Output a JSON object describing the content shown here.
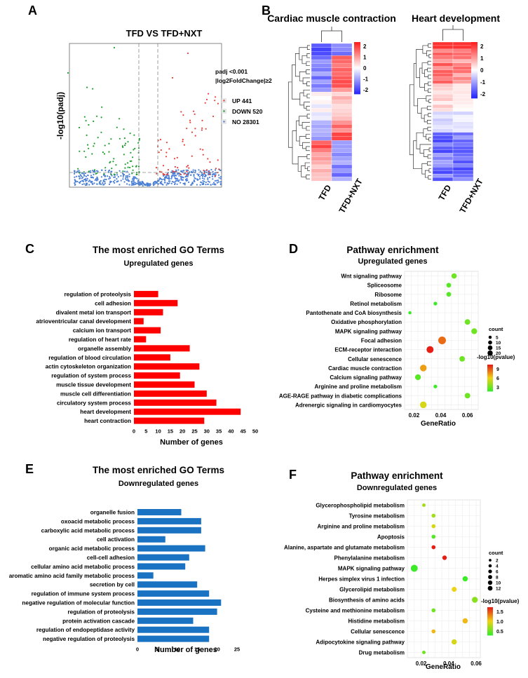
{
  "panels": {
    "A": {
      "letter": "A",
      "title": "TFD VS TFD+NXT",
      "ylabel": "-log10(padj)",
      "criteria": [
        "padj <0.001",
        "|log2FoldChange|≥2"
      ],
      "legend": [
        {
          "label": "UP 441",
          "color": "#e8413c"
        },
        {
          "label": "DOWN 520",
          "color": "#1f9e2f"
        },
        {
          "label": "NO 28301",
          "color": "#4a7fd6"
        }
      ]
    },
    "B": {
      "letter": "B",
      "heatmaps": [
        {
          "title": "Cardiac muscle contraction",
          "columns": [
            "TFD",
            "TFD+NXT"
          ]
        },
        {
          "title": "Heart development",
          "columns": [
            "TFD",
            "TFD+NXT"
          ]
        }
      ],
      "colorbar_ticks": [
        "2",
        "1",
        "0",
        "-1",
        "-2"
      ]
    },
    "C": {
      "letter": "C",
      "title": "The most enriched GO Terms",
      "subtitle": "Upregulated genes",
      "xlabel": "Number of genes"
    },
    "D": {
      "letter": "D",
      "title": "Pathway enrichment",
      "subtitle": "Upregulated genes",
      "xlabel": "GeneRatio",
      "legend_count_title": "count",
      "legend_count_values": [
        "5",
        "10",
        "15",
        "20"
      ],
      "legend_color_title": "-log10(pvalue)",
      "legend_color_ticks": [
        "9",
        "6",
        "3"
      ]
    },
    "E": {
      "letter": "E",
      "title": "The most enriched GO Terms",
      "subtitle": "Downregulated genes",
      "xlabel": "Number of genes"
    },
    "F": {
      "letter": "F",
      "title": "Pathway enrichment",
      "subtitle": "Downregulated genes",
      "xlabel": "GeneRatio",
      "legend_count_title": "count",
      "legend_count_values": [
        "2",
        "4",
        "6",
        "8",
        "10",
        "12"
      ],
      "legend_color_title": "-log10(pvalue)",
      "legend_color_ticks": [
        "1.5",
        "1.0",
        "0.5"
      ]
    }
  },
  "chart_data": [
    {
      "panel": "C",
      "type": "bar",
      "orientation": "horizontal",
      "color": "#ff0000",
      "categories": [
        "regulation of proteolysis",
        "cell adhesion",
        "divalent metal ion transport",
        "atrioventricular canal development",
        "calcium ion transport",
        "regulation of heart rate",
        "organelle assembly",
        "regulation of blood circulation",
        "actin cytoskeleton organization",
        "regulation of system process",
        "muscle tissue development",
        "muscle cell differentiation",
        "circulatory system process",
        "heart development",
        "heart contraction"
      ],
      "values": [
        10,
        18,
        12,
        4,
        11,
        5,
        23,
        15,
        27,
        19,
        25,
        30,
        34,
        44,
        29
      ],
      "xticks": [
        0,
        5,
        10,
        15,
        20,
        25,
        30,
        35,
        40,
        45,
        50
      ],
      "xlim": [
        0,
        50
      ]
    },
    {
      "panel": "D",
      "type": "scatter",
      "categories": [
        "Wnt signaling pathway",
        "Spliceosome",
        "Ribosome",
        "Retinol metabolism",
        "Pantothenate and CoA biosynthesis",
        "Oxidative phosphorylation",
        "MAPK signaling pathway",
        "Focal adhesion",
        "ECM-receptor interaction",
        "Cellular senescence",
        "Cardiac muscle contraction",
        "Calcium signaling pathway",
        "Arginine and proline metabolism",
        "AGE-RAGE pathway in diabetic complications",
        "Adrenergic signaling in cardiomyocytes"
      ],
      "gene_ratio": [
        0.05,
        0.046,
        0.046,
        0.036,
        0.017,
        0.06,
        0.065,
        0.041,
        0.032,
        0.056,
        0.027,
        0.023,
        0.036,
        0.06,
        0.027
      ],
      "count": [
        8,
        6,
        6,
        3,
        2,
        9,
        10,
        20,
        16,
        9,
        14,
        10,
        3,
        9,
        14
      ],
      "neg_log10_pvalue": [
        3,
        2.5,
        2.5,
        2,
        2,
        3,
        3,
        7.5,
        9,
        3,
        6.5,
        2.5,
        2,
        3,
        5
      ],
      "xticks": [
        0.02,
        0.04,
        0.06
      ],
      "xlim": [
        0.013,
        0.068
      ]
    },
    {
      "panel": "E",
      "type": "bar",
      "orientation": "horizontal",
      "color": "#1a72c2",
      "categories": [
        "organelle fusion",
        "oxoacid metabolic process",
        "carboxylic acid metabolic process",
        "cell activation",
        "organic acid metabolic process",
        "cell-cell adhesion",
        "cellular amino acid metabolic process",
        "aromatic amino acid family metabolic process",
        "secretion by cell",
        "regulation of immune system process",
        "negative regulation of molecular function",
        "regulation of proteolysis",
        "protein activation cascade",
        "regulation of endopeptidase activity",
        "negative regulation of proteolysis"
      ],
      "values": [
        11,
        16,
        16,
        7,
        17,
        13,
        12,
        4,
        15,
        18,
        21,
        20,
        14,
        18,
        18
      ],
      "xticks": [
        0,
        5,
        10,
        15,
        20,
        25
      ],
      "xlim": [
        0,
        25
      ]
    },
    {
      "panel": "F",
      "type": "scatter",
      "categories": [
        "Glycerophospholipid metabolism",
        "Tyrosine metabolism",
        "Arginine and proline metabolism",
        "Apoptosis",
        "Alanine, aspartate and glutamate metabolism",
        "Phenylalanine metabolism",
        "MAPK signaling pathway",
        "Herpes simplex virus 1 infection",
        "Glycerolipid metabolism",
        "Biosynthesis of amino acids",
        "Cysteine and methionine metabolism",
        "Histidine metabolism",
        "Cellular senescence",
        "Adipocytokine signaling pathway",
        "Drug metabolism"
      ],
      "gene_ratio": [
        0.022,
        0.029,
        0.029,
        0.029,
        0.029,
        0.037,
        0.015,
        0.052,
        0.044,
        0.059,
        0.029,
        0.052,
        0.029,
        0.044,
        0.022
      ],
      "count": [
        2,
        3,
        3,
        3,
        3,
        4,
        12,
        6,
        5,
        8,
        3,
        6,
        3,
        6,
        2
      ],
      "neg_log10_pvalue": [
        0.8,
        0.8,
        1.0,
        0.5,
        1.8,
        1.8,
        0.4,
        0.4,
        1.1,
        0.7,
        0.6,
        1.2,
        1.2,
        1.0,
        0.6
      ],
      "xticks": [
        0.02,
        0.04,
        0.06
      ],
      "xlim": [
        0.01,
        0.063
      ]
    }
  ]
}
